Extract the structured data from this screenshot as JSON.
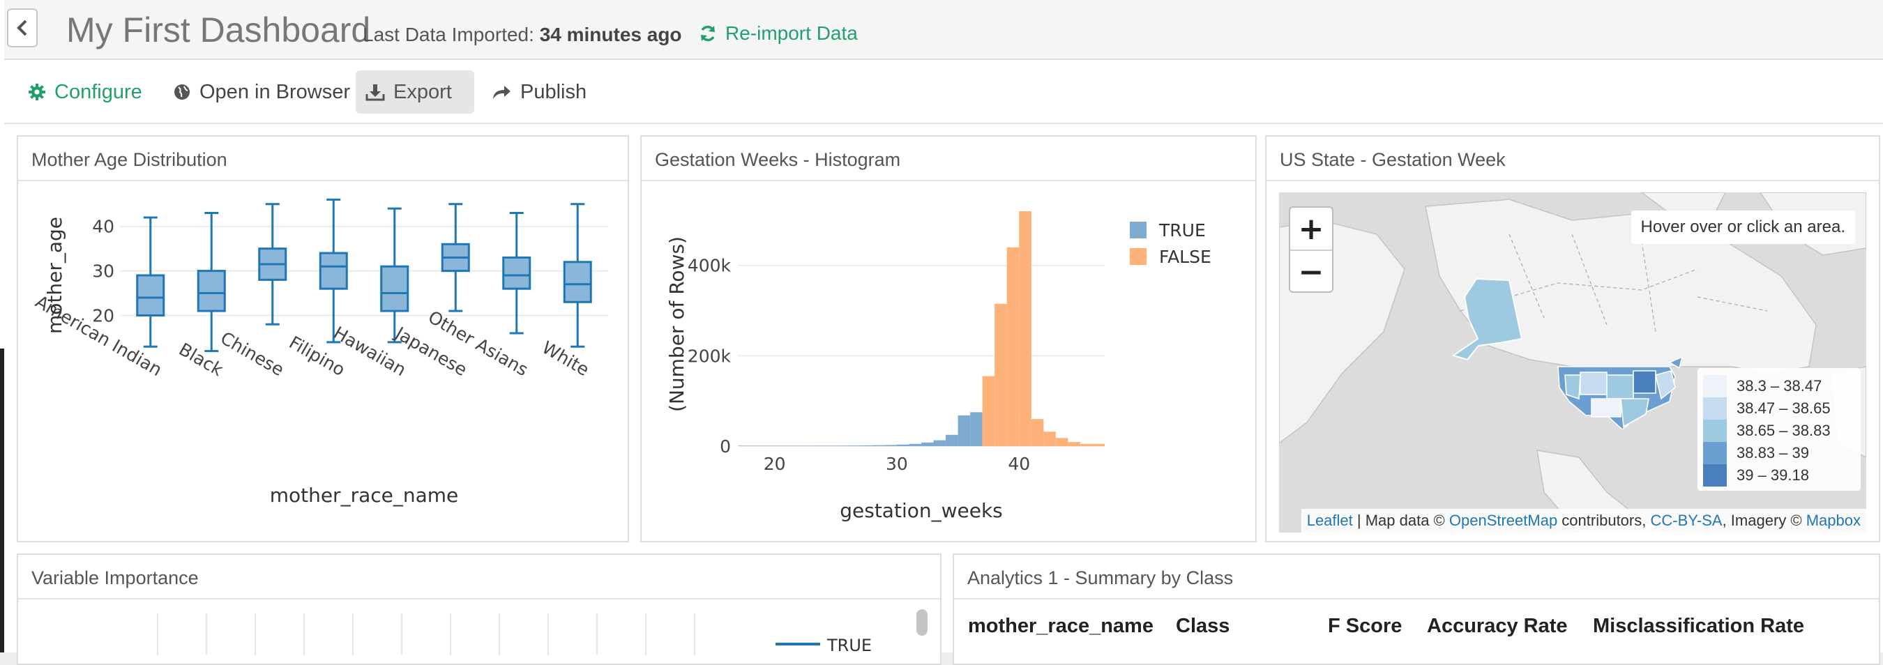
{
  "header": {
    "title": "My First Dashboard",
    "imported_label": "Last Data Imported: ",
    "imported_value": "34 minutes ago",
    "reimport_label": "Re-import Data"
  },
  "toolbar": {
    "configure": "Configure",
    "open_browser": "Open in Browser",
    "export": "Export",
    "publish": "Publish"
  },
  "panels": {
    "mother_age": {
      "title": "Mother Age Distribution"
    },
    "gestation": {
      "title": "Gestation Weeks - Histogram"
    },
    "us_state": {
      "title": "US State - Gestation Week",
      "hover_info": "Hover over or click an area.",
      "zoom_in": "+",
      "zoom_out": "−",
      "legend": [
        {
          "label": "38.3 – 38.47",
          "color": "#eef3fa"
        },
        {
          "label": "38.47 – 38.65",
          "color": "#c6dbef"
        },
        {
          "label": "38.65 – 38.83",
          "color": "#9ecae1"
        },
        {
          "label": "38.83 – 39",
          "color": "#6b9fd1"
        },
        {
          "label": "39 – 39.18",
          "color": "#4a7fbe"
        }
      ],
      "attribution": {
        "leaflet": "Leaflet",
        "text1": " | Map data © ",
        "osm": "OpenStreetMap",
        "text2": " contributors, ",
        "cc": "CC-BY-SA",
        "text3": ", Imagery © ",
        "mapbox": "Mapbox"
      }
    },
    "variable_importance": {
      "title": "Variable Importance",
      "legend_true": "TRUE"
    },
    "analytics": {
      "title": "Analytics 1 - Summary by Class",
      "columns": [
        "mother_race_name",
        "Class",
        "F Score",
        "Accuracy Rate",
        "Misclassification Rate"
      ]
    }
  },
  "chart_data": [
    {
      "type": "box",
      "title": "",
      "xlabel": "mother_race_name",
      "ylabel": "mother_age",
      "yticks": [
        20,
        30,
        40
      ],
      "ylim": [
        11,
        47
      ],
      "color": "#1f77b4",
      "categories": [
        "American Indian",
        "Black",
        "Chinese",
        "Filipino",
        "Hawaiian",
        "Japanese",
        "Other Asians",
        "White"
      ],
      "boxes": [
        {
          "min": 13,
          "q1": 20,
          "median": 24,
          "q3": 29,
          "max": 42
        },
        {
          "min": 12,
          "q1": 21,
          "median": 25,
          "q3": 30,
          "max": 43
        },
        {
          "min": 18,
          "q1": 28,
          "median": 31.5,
          "q3": 35,
          "max": 45
        },
        {
          "min": 14,
          "q1": 26,
          "median": 31,
          "q3": 34,
          "max": 46
        },
        {
          "min": 14,
          "q1": 21,
          "median": 25,
          "q3": 31,
          "max": 44
        },
        {
          "min": 21,
          "q1": 30,
          "median": 33,
          "q3": 36,
          "max": 45
        },
        {
          "min": 16,
          "q1": 26,
          "median": 29,
          "q3": 33,
          "max": 43
        },
        {
          "min": 13,
          "q1": 23,
          "median": 27,
          "q3": 32,
          "max": 45
        }
      ]
    },
    {
      "type": "bar",
      "title": "",
      "xlabel": "gestation_weeks",
      "ylabel": "(Number of Rows)",
      "xticks": [
        20,
        30,
        40
      ],
      "yticks": [
        0,
        200000,
        400000
      ],
      "ytick_labels": [
        "0",
        "200k",
        "400k"
      ],
      "xlim": [
        17,
        47
      ],
      "ylim": [
        0,
        540000
      ],
      "legend": "top-right",
      "series": [
        {
          "name": "TRUE",
          "color": "#7ea9d1",
          "bins": [
            [
              17,
              18,
              800
            ],
            [
              18,
              19,
              800
            ],
            [
              19,
              20,
              800
            ],
            [
              20,
              21,
              800
            ],
            [
              21,
              22,
              800
            ],
            [
              22,
              23,
              800
            ],
            [
              23,
              24,
              900
            ],
            [
              24,
              25,
              900
            ],
            [
              25,
              26,
              1000
            ],
            [
              26,
              27,
              1200
            ],
            [
              27,
              28,
              1500
            ],
            [
              28,
              29,
              2000
            ],
            [
              29,
              30,
              2500
            ],
            [
              30,
              31,
              3500
            ],
            [
              31,
              32,
              5000
            ],
            [
              32,
              33,
              8000
            ],
            [
              33,
              34,
              13000
            ],
            [
              34,
              35,
              25000
            ],
            [
              35,
              36,
              68000
            ],
            [
              36,
              37,
              75000
            ]
          ]
        },
        {
          "name": "FALSE",
          "color": "#fdb27a",
          "bins": [
            [
              37,
              38,
              155000
            ],
            [
              38,
              39,
              315000
            ],
            [
              39,
              40,
              440000
            ],
            [
              40,
              41,
              520000
            ],
            [
              41,
              42,
              60000
            ],
            [
              42,
              43,
              32000
            ],
            [
              43,
              44,
              18000
            ],
            [
              44,
              45,
              9000
            ],
            [
              45,
              46,
              5000
            ],
            [
              46,
              47,
              5000
            ]
          ]
        }
      ]
    }
  ]
}
